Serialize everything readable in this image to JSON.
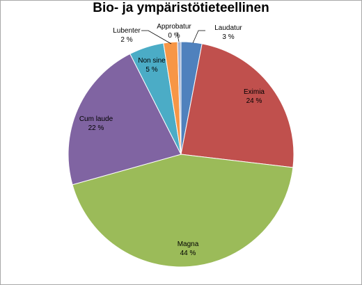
{
  "chart_data": {
    "type": "pie",
    "title": "Bio- ja ympäristötieteellinen",
    "start_angle_deg": 0,
    "direction": "clockwise",
    "slices": [
      {
        "label": "Laudatur",
        "value": 3,
        "value_label": "3 %",
        "color": "#4f81bd"
      },
      {
        "label": "Eximia",
        "value": 24,
        "value_label": "24 %",
        "color": "#c0504d"
      },
      {
        "label": "Magna",
        "value": 44,
        "value_label": "44 %",
        "color": "#9bbb59"
      },
      {
        "label": "Cum laude",
        "value": 22,
        "value_label": "22 %",
        "color": "#8064a2"
      },
      {
        "label": "Non sine",
        "value": 5,
        "value_label": "5 %",
        "color": "#4bacc6"
      },
      {
        "label": "Lubenter",
        "value": 2,
        "value_label": "2 %",
        "color": "#f79646"
      },
      {
        "label": "Approbatur",
        "value": 0.5,
        "value_label": "0 %",
        "color": "#a5b4d4"
      }
    ]
  }
}
